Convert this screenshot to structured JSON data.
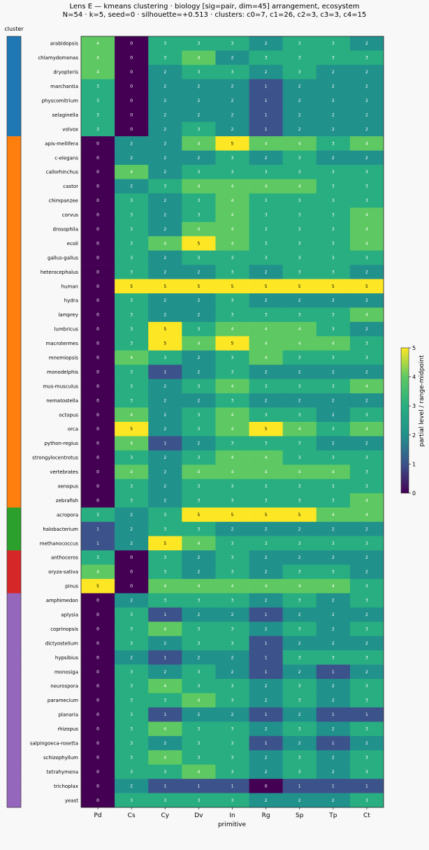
{
  "chart_data": {
    "type": "heatmap",
    "title": "Lens E — kmeans clustering · biology [sig=pair, dim=45] arrangement, ecosystem",
    "subtitle": "N=54 · k=5, seed=0 · silhouette=+0.513 · clusters: c0=7, c1=26, c2=3, c3=3, c4=15",
    "xlabel": "primitive",
    "cluster_label": "cluster",
    "colorbar_label": "partial level / range-midpoint",
    "colorbar_ticks": [
      "0",
      "1",
      "2",
      "3",
      "4",
      "5"
    ],
    "vmin": 0,
    "vmax": 5,
    "columns": [
      "Pd",
      "Cs",
      "Cy",
      "Dv",
      "In",
      "Rg",
      "Sp",
      "Tp",
      "Ct"
    ],
    "cluster_colors": [
      "#1f77b4",
      "#ff7f0e",
      "#2ca02c",
      "#d62728",
      "#9467bd"
    ],
    "rows": [
      {
        "name": "arabidopsis",
        "cluster": 0,
        "values": [
          4,
          0,
          3,
          3,
          3,
          2,
          3,
          3,
          2
        ]
      },
      {
        "name": "chlamydomonas",
        "cluster": 0,
        "values": [
          4,
          0,
          3,
          4,
          2,
          3,
          3,
          3,
          3
        ]
      },
      {
        "name": "dryopteris",
        "cluster": 0,
        "values": [
          4,
          0,
          2,
          3,
          3,
          2,
          3,
          2,
          2
        ]
      },
      {
        "name": "marchantia",
        "cluster": 0,
        "values": [
          3,
          0,
          2,
          2,
          2,
          1,
          2,
          2,
          2
        ]
      },
      {
        "name": "physcomitrium",
        "cluster": 0,
        "values": [
          3,
          0,
          2,
          2,
          2,
          1,
          2,
          2,
          2
        ]
      },
      {
        "name": "selaginella",
        "cluster": 0,
        "values": [
          3,
          0,
          2,
          2,
          2,
          1,
          2,
          2,
          2
        ]
      },
      {
        "name": "volvox",
        "cluster": 0,
        "values": [
          3,
          0,
          2,
          3,
          2,
          1,
          2,
          2,
          2
        ]
      },
      {
        "name": "apis-mellifera",
        "cluster": 1,
        "values": [
          0,
          2,
          2,
          4,
          5,
          4,
          4,
          3,
          4
        ]
      },
      {
        "name": "c-elegans",
        "cluster": 1,
        "values": [
          0,
          2,
          2,
          2,
          3,
          2,
          3,
          2,
          2
        ]
      },
      {
        "name": "callorhinchus",
        "cluster": 1,
        "values": [
          0,
          4,
          2,
          3,
          3,
          3,
          3,
          3,
          3
        ]
      },
      {
        "name": "castor",
        "cluster": 1,
        "values": [
          0,
          2,
          3,
          4,
          4,
          4,
          4,
          3,
          3
        ]
      },
      {
        "name": "chimpanzee",
        "cluster": 1,
        "values": [
          0,
          3,
          2,
          3,
          4,
          3,
          3,
          3,
          3
        ]
      },
      {
        "name": "corvus",
        "cluster": 1,
        "values": [
          0,
          3,
          2,
          3,
          4,
          3,
          3,
          3,
          4
        ]
      },
      {
        "name": "drosophila",
        "cluster": 1,
        "values": [
          0,
          3,
          2,
          4,
          4,
          3,
          3,
          3,
          4
        ]
      },
      {
        "name": "ecoli",
        "cluster": 1,
        "values": [
          0,
          3,
          4,
          5,
          4,
          3,
          3,
          3,
          4
        ]
      },
      {
        "name": "gallus-gallus",
        "cluster": 1,
        "values": [
          0,
          3,
          2,
          3,
          3,
          3,
          3,
          3,
          3
        ]
      },
      {
        "name": "heterocephalus",
        "cluster": 1,
        "values": [
          0,
          3,
          2,
          2,
          3,
          2,
          3,
          3,
          2
        ]
      },
      {
        "name": "human",
        "cluster": 1,
        "values": [
          0,
          5,
          5,
          5,
          5,
          5,
          5,
          5,
          5
        ]
      },
      {
        "name": "hydra",
        "cluster": 1,
        "values": [
          0,
          3,
          2,
          2,
          3,
          2,
          2,
          2,
          2
        ]
      },
      {
        "name": "lamprey",
        "cluster": 1,
        "values": [
          0,
          3,
          2,
          2,
          3,
          3,
          3,
          3,
          4
        ]
      },
      {
        "name": "lumbricus",
        "cluster": 1,
        "values": [
          0,
          3,
          5,
          3,
          4,
          4,
          4,
          3,
          2
        ]
      },
      {
        "name": "macrotermes",
        "cluster": 1,
        "values": [
          0,
          3,
          5,
          4,
          5,
          4,
          4,
          4,
          3
        ]
      },
      {
        "name": "mnemiopsis",
        "cluster": 1,
        "values": [
          0,
          4,
          3,
          2,
          3,
          4,
          3,
          3,
          3
        ]
      },
      {
        "name": "monodelphis",
        "cluster": 1,
        "values": [
          0,
          3,
          1,
          2,
          3,
          2,
          2,
          2,
          2
        ]
      },
      {
        "name": "mus-musculus",
        "cluster": 1,
        "values": [
          0,
          3,
          2,
          3,
          4,
          3,
          3,
          3,
          4
        ]
      },
      {
        "name": "nematostella",
        "cluster": 1,
        "values": [
          0,
          3,
          2,
          2,
          3,
          2,
          2,
          2,
          2
        ]
      },
      {
        "name": "octopus",
        "cluster": 1,
        "values": [
          0,
          4,
          2,
          3,
          4,
          3,
          3,
          2,
          3
        ]
      },
      {
        "name": "orca",
        "cluster": 1,
        "values": [
          0,
          5,
          2,
          3,
          4,
          5,
          4,
          3,
          4
        ]
      },
      {
        "name": "python-regius",
        "cluster": 1,
        "values": [
          0,
          4,
          1,
          2,
          3,
          3,
          3,
          2,
          2
        ]
      },
      {
        "name": "strongylocentrotus",
        "cluster": 1,
        "values": [
          0,
          3,
          2,
          3,
          4,
          4,
          3,
          3,
          3
        ]
      },
      {
        "name": "vertebrates",
        "cluster": 1,
        "values": [
          0,
          4,
          2,
          4,
          4,
          4,
          4,
          4,
          3
        ]
      },
      {
        "name": "xenopus",
        "cluster": 1,
        "values": [
          0,
          3,
          2,
          3,
          3,
          3,
          3,
          3,
          3
        ]
      },
      {
        "name": "zebrafish",
        "cluster": 1,
        "values": [
          0,
          3,
          2,
          3,
          3,
          3,
          3,
          3,
          4
        ]
      },
      {
        "name": "acropora",
        "cluster": 2,
        "values": [
          3,
          2,
          3,
          5,
          5,
          5,
          5,
          4,
          4
        ]
      },
      {
        "name": "halobacterium",
        "cluster": 2,
        "values": [
          1,
          2,
          3,
          3,
          2,
          2,
          2,
          2,
          2
        ]
      },
      {
        "name": "methanococcus",
        "cluster": 2,
        "values": [
          1,
          2,
          5,
          4,
          3,
          3,
          3,
          3,
          3
        ]
      },
      {
        "name": "anthoceros",
        "cluster": 3,
        "values": [
          3,
          0,
          3,
          2,
          3,
          2,
          2,
          2,
          2
        ]
      },
      {
        "name": "oryza-sativa",
        "cluster": 3,
        "values": [
          4,
          0,
          3,
          2,
          3,
          2,
          3,
          3,
          2
        ]
      },
      {
        "name": "pinus",
        "cluster": 3,
        "values": [
          5,
          0,
          4,
          4,
          4,
          4,
          4,
          4,
          3
        ]
      },
      {
        "name": "amphimedon",
        "cluster": 4,
        "values": [
          0,
          2,
          3,
          3,
          3,
          2,
          3,
          2,
          3
        ]
      },
      {
        "name": "aplysia",
        "cluster": 4,
        "values": [
          0,
          3,
          1,
          2,
          2,
          1,
          2,
          2,
          2
        ]
      },
      {
        "name": "coprinopsis",
        "cluster": 4,
        "values": [
          0,
          3,
          4,
          3,
          3,
          2,
          3,
          2,
          3
        ]
      },
      {
        "name": "dictyostelium",
        "cluster": 4,
        "values": [
          0,
          3,
          2,
          3,
          3,
          1,
          2,
          2,
          2
        ]
      },
      {
        "name": "hypsibius",
        "cluster": 4,
        "values": [
          0,
          2,
          1,
          2,
          2,
          1,
          3,
          3,
          3
        ]
      },
      {
        "name": "monosiga",
        "cluster": 4,
        "values": [
          0,
          3,
          2,
          3,
          2,
          1,
          2,
          1,
          2
        ]
      },
      {
        "name": "neurospora",
        "cluster": 4,
        "values": [
          0,
          3,
          4,
          3,
          3,
          2,
          3,
          2,
          3
        ]
      },
      {
        "name": "paramecium",
        "cluster": 4,
        "values": [
          0,
          3,
          3,
          4,
          3,
          2,
          3,
          2,
          3
        ]
      },
      {
        "name": "planaria",
        "cluster": 4,
        "values": [
          0,
          3,
          1,
          2,
          2,
          1,
          2,
          1,
          1
        ]
      },
      {
        "name": "rhizopus",
        "cluster": 4,
        "values": [
          0,
          3,
          4,
          3,
          3,
          2,
          3,
          2,
          3
        ]
      },
      {
        "name": "salpingoeca-rosetta",
        "cluster": 4,
        "values": [
          0,
          3,
          2,
          3,
          3,
          1,
          2,
          1,
          2
        ]
      },
      {
        "name": "schizophyllum",
        "cluster": 4,
        "values": [
          0,
          3,
          4,
          3,
          3,
          2,
          3,
          2,
          3
        ]
      },
      {
        "name": "tetrahymena",
        "cluster": 4,
        "values": [
          0,
          3,
          3,
          4,
          3,
          2,
          3,
          2,
          3
        ]
      },
      {
        "name": "trichoplax",
        "cluster": 4,
        "values": [
          0,
          2,
          1,
          1,
          1,
          0,
          1,
          1,
          1
        ]
      },
      {
        "name": "yeast",
        "cluster": 4,
        "values": [
          0,
          3,
          3,
          3,
          3,
          2,
          2,
          2,
          3
        ]
      }
    ]
  }
}
